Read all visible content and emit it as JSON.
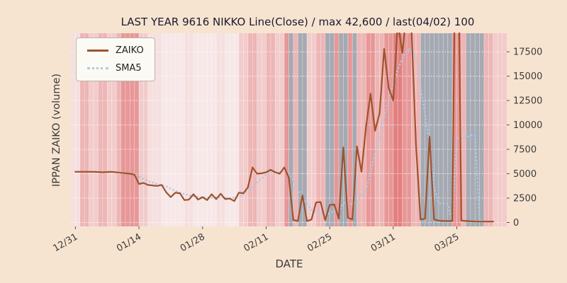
{
  "title": "LAST YEAR 9616 NIKKO Line(Close) / max 42,600 / last(04/02) 100",
  "xlabel": "DATE",
  "ylabel": "IPPAN ZAIKO (volume)",
  "legend": {
    "zaiko_label": "ZAIKO",
    "sma5_label": "SMA5"
  },
  "colors": {
    "figure_background": "#f7e4d0",
    "plot_background": "#efe8e8",
    "zaiko_line": "#a0522d",
    "sma5_line": "#a9cbe6",
    "title_text": "#1b1b30",
    "tick_text": "#3b3b3b"
  },
  "chart_data": {
    "type": "line",
    "title": "LAST YEAR 9616 NIKKO Line(Close) / max 42,600 / last(04/02) 100",
    "xlabel": "DATE",
    "ylabel": "IPPAN ZAIKO (volume)",
    "legend_position": "upper left",
    "grid": true,
    "xlim": [
      -1,
      95
    ],
    "ylim": [
      -400,
      19400
    ],
    "x_ticks": [
      {
        "day": 0,
        "label": "12/31"
      },
      {
        "day": 14,
        "label": "01/14"
      },
      {
        "day": 28,
        "label": "01/28"
      },
      {
        "day": 42,
        "label": "02/11"
      },
      {
        "day": 56,
        "label": "02/25"
      },
      {
        "day": 70,
        "label": "03/11"
      },
      {
        "day": 84,
        "label": "03/25"
      }
    ],
    "y_ticks": [
      0,
      2500,
      5000,
      7500,
      10000,
      12500,
      15000,
      17500
    ],
    "series": [
      {
        "name": "ZAIKO",
        "style": "solid",
        "color": "#a0522d",
        "points": [
          [
            0,
            5200
          ],
          [
            2,
            5200
          ],
          [
            4,
            5200
          ],
          [
            6,
            5150
          ],
          [
            8,
            5200
          ],
          [
            10,
            5100
          ],
          [
            12,
            5000
          ],
          [
            13,
            4900
          ],
          [
            14,
            3950
          ],
          [
            15,
            4050
          ],
          [
            16,
            3850
          ],
          [
            17,
            3800
          ],
          [
            18,
            3750
          ],
          [
            19,
            3850
          ],
          [
            20,
            3100
          ],
          [
            21,
            2600
          ],
          [
            22,
            3050
          ],
          [
            23,
            3000
          ],
          [
            24,
            2300
          ],
          [
            25,
            2350
          ],
          [
            26,
            2900
          ],
          [
            27,
            2350
          ],
          [
            28,
            2600
          ],
          [
            29,
            2300
          ],
          [
            30,
            2900
          ],
          [
            31,
            2400
          ],
          [
            32,
            2950
          ],
          [
            33,
            2400
          ],
          [
            34,
            2450
          ],
          [
            35,
            2200
          ],
          [
            36,
            3050
          ],
          [
            37,
            3000
          ],
          [
            38,
            3600
          ],
          [
            39,
            5650
          ],
          [
            40,
            5000
          ],
          [
            41,
            5050
          ],
          [
            42,
            5150
          ],
          [
            43,
            5400
          ],
          [
            44,
            5150
          ],
          [
            45,
            5000
          ],
          [
            46,
            5650
          ],
          [
            47,
            4600
          ],
          [
            48,
            250
          ],
          [
            49,
            150
          ],
          [
            50,
            2800
          ],
          [
            51,
            150
          ],
          [
            52,
            300
          ],
          [
            53,
            2050
          ],
          [
            54,
            2100
          ],
          [
            55,
            250
          ],
          [
            56,
            1800
          ],
          [
            57,
            1850
          ],
          [
            58,
            400
          ],
          [
            59,
            7700
          ],
          [
            60,
            500
          ],
          [
            61,
            300
          ],
          [
            62,
            7800
          ],
          [
            63,
            5200
          ],
          [
            64,
            9800
          ],
          [
            65,
            13200
          ],
          [
            66,
            9400
          ],
          [
            67,
            11200
          ],
          [
            68,
            17800
          ],
          [
            69,
            13800
          ],
          [
            70,
            12500
          ],
          [
            71,
            20500
          ],
          [
            72,
            17400
          ],
          [
            73,
            22000
          ],
          [
            74,
            20000
          ],
          [
            75,
            8000
          ],
          [
            76,
            300
          ],
          [
            77,
            400
          ],
          [
            78,
            8800
          ],
          [
            79,
            300
          ],
          [
            80,
            200
          ],
          [
            81,
            150
          ],
          [
            82,
            150
          ],
          [
            83,
            150
          ],
          [
            84,
            42600
          ],
          [
            85,
            200
          ],
          [
            86,
            150
          ],
          [
            88,
            100
          ],
          [
            90,
            90
          ],
          [
            92,
            100
          ]
        ]
      },
      {
        "name": "SMA5",
        "style": "dotted",
        "color": "#a9cbe6",
        "points": [
          [
            0,
            5200
          ],
          [
            2,
            5200
          ],
          [
            4,
            5200
          ],
          [
            6,
            5180
          ],
          [
            8,
            5180
          ],
          [
            10,
            5150
          ],
          [
            12,
            5080
          ],
          [
            14,
            4700
          ],
          [
            16,
            4250
          ],
          [
            18,
            3950
          ],
          [
            20,
            3700
          ],
          [
            22,
            3250
          ],
          [
            24,
            2900
          ],
          [
            26,
            2700
          ],
          [
            28,
            2550
          ],
          [
            30,
            2550
          ],
          [
            32,
            2600
          ],
          [
            34,
            2500
          ],
          [
            36,
            2650
          ],
          [
            38,
            3200
          ],
          [
            39,
            3600
          ],
          [
            40,
            4100
          ],
          [
            41,
            4500
          ],
          [
            42,
            4950
          ],
          [
            43,
            5100
          ],
          [
            44,
            5200
          ],
          [
            45,
            5150
          ],
          [
            46,
            5250
          ],
          [
            47,
            5150
          ],
          [
            48,
            4300
          ],
          [
            49,
            3400
          ],
          [
            50,
            2600
          ],
          [
            51,
            1900
          ],
          [
            52,
            1300
          ],
          [
            53,
            1100
          ],
          [
            54,
            1000
          ],
          [
            55,
            950
          ],
          [
            56,
            900
          ],
          [
            57,
            1250
          ],
          [
            58,
            1100
          ],
          [
            59,
            2000
          ],
          [
            60,
            2050
          ],
          [
            61,
            1850
          ],
          [
            62,
            2150
          ],
          [
            63,
            2800
          ],
          [
            64,
            3300
          ],
          [
            65,
            5200
          ],
          [
            66,
            7100
          ],
          [
            67,
            8700
          ],
          [
            68,
            10700
          ],
          [
            69,
            12600
          ],
          [
            70,
            14200
          ],
          [
            71,
            15700
          ],
          [
            72,
            16800
          ],
          [
            73,
            17600
          ],
          [
            74,
            17900
          ],
          [
            75,
            16800
          ],
          [
            76,
            14000
          ],
          [
            77,
            11000
          ],
          [
            78,
            8200
          ],
          [
            79,
            3500
          ],
          [
            80,
            2000
          ],
          [
            81,
            1950
          ],
          [
            82,
            1900
          ],
          [
            83,
            200
          ],
          [
            84,
            8650
          ],
          [
            85,
            8650
          ],
          [
            86,
            8700
          ],
          [
            87,
            8950
          ],
          [
            88,
            8950
          ],
          [
            89,
            200
          ],
          [
            90,
            160
          ],
          [
            91,
            130
          ],
          [
            92,
            120
          ]
        ]
      }
    ],
    "band_colors": {
      "verypale": "#f7e7e7",
      "pale": "#f6dfdf",
      "light": "#f2cbcb",
      "medium": "#edb5b5",
      "red": "#e79797",
      "strong": "#e27f7f",
      "gray": "#a5a9b2"
    },
    "background_bands": [
      {
        "from": -1,
        "to": 1,
        "color": "pale"
      },
      {
        "from": 1,
        "to": 3,
        "color": "medium"
      },
      {
        "from": 3,
        "to": 5,
        "color": "light"
      },
      {
        "from": 5,
        "to": 7,
        "color": "medium"
      },
      {
        "from": 7,
        "to": 9,
        "color": "light"
      },
      {
        "from": 9,
        "to": 10,
        "color": "medium"
      },
      {
        "from": 10,
        "to": 14,
        "color": "red"
      },
      {
        "from": 14,
        "to": 16,
        "color": "light"
      },
      {
        "from": 16,
        "to": 19,
        "color": "pale"
      },
      {
        "from": 19,
        "to": 24,
        "color": "verypale"
      },
      {
        "from": 24,
        "to": 26,
        "color": "pale"
      },
      {
        "from": 26,
        "to": 31,
        "color": "verypale"
      },
      {
        "from": 31,
        "to": 33,
        "color": "pale"
      },
      {
        "from": 33,
        "to": 36,
        "color": "verypale"
      },
      {
        "from": 36,
        "to": 38,
        "color": "light"
      },
      {
        "from": 38,
        "to": 40,
        "color": "medium"
      },
      {
        "from": 40,
        "to": 42,
        "color": "light"
      },
      {
        "from": 42,
        "to": 44,
        "color": "medium"
      },
      {
        "from": 44,
        "to": 46,
        "color": "light"
      },
      {
        "from": 46,
        "to": 47,
        "color": "red"
      },
      {
        "from": 47,
        "to": 48,
        "color": "gray"
      },
      {
        "from": 48,
        "to": 49,
        "color": "medium"
      },
      {
        "from": 49,
        "to": 51,
        "color": "gray"
      },
      {
        "from": 51,
        "to": 53,
        "color": "light"
      },
      {
        "from": 53,
        "to": 55,
        "color": "medium"
      },
      {
        "from": 55,
        "to": 57,
        "color": "gray"
      },
      {
        "from": 57,
        "to": 58,
        "color": "red"
      },
      {
        "from": 58,
        "to": 60,
        "color": "gray"
      },
      {
        "from": 60,
        "to": 61,
        "color": "red"
      },
      {
        "from": 61,
        "to": 62,
        "color": "gray"
      },
      {
        "from": 62,
        "to": 64,
        "color": "medium"
      },
      {
        "from": 64,
        "to": 66,
        "color": "red"
      },
      {
        "from": 66,
        "to": 68,
        "color": "medium"
      },
      {
        "from": 68,
        "to": 70,
        "color": "red"
      },
      {
        "from": 70,
        "to": 72,
        "color": "strong"
      },
      {
        "from": 72,
        "to": 74,
        "color": "red"
      },
      {
        "from": 74,
        "to": 76,
        "color": "medium"
      },
      {
        "from": 76,
        "to": 83,
        "color": "gray"
      },
      {
        "from": 83,
        "to": 85,
        "color": "red"
      },
      {
        "from": 85,
        "to": 86,
        "color": "medium"
      },
      {
        "from": 86,
        "to": 90,
        "color": "gray"
      },
      {
        "from": 90,
        "to": 92,
        "color": "medium"
      },
      {
        "from": 92,
        "to": 95,
        "color": "light"
      }
    ]
  }
}
